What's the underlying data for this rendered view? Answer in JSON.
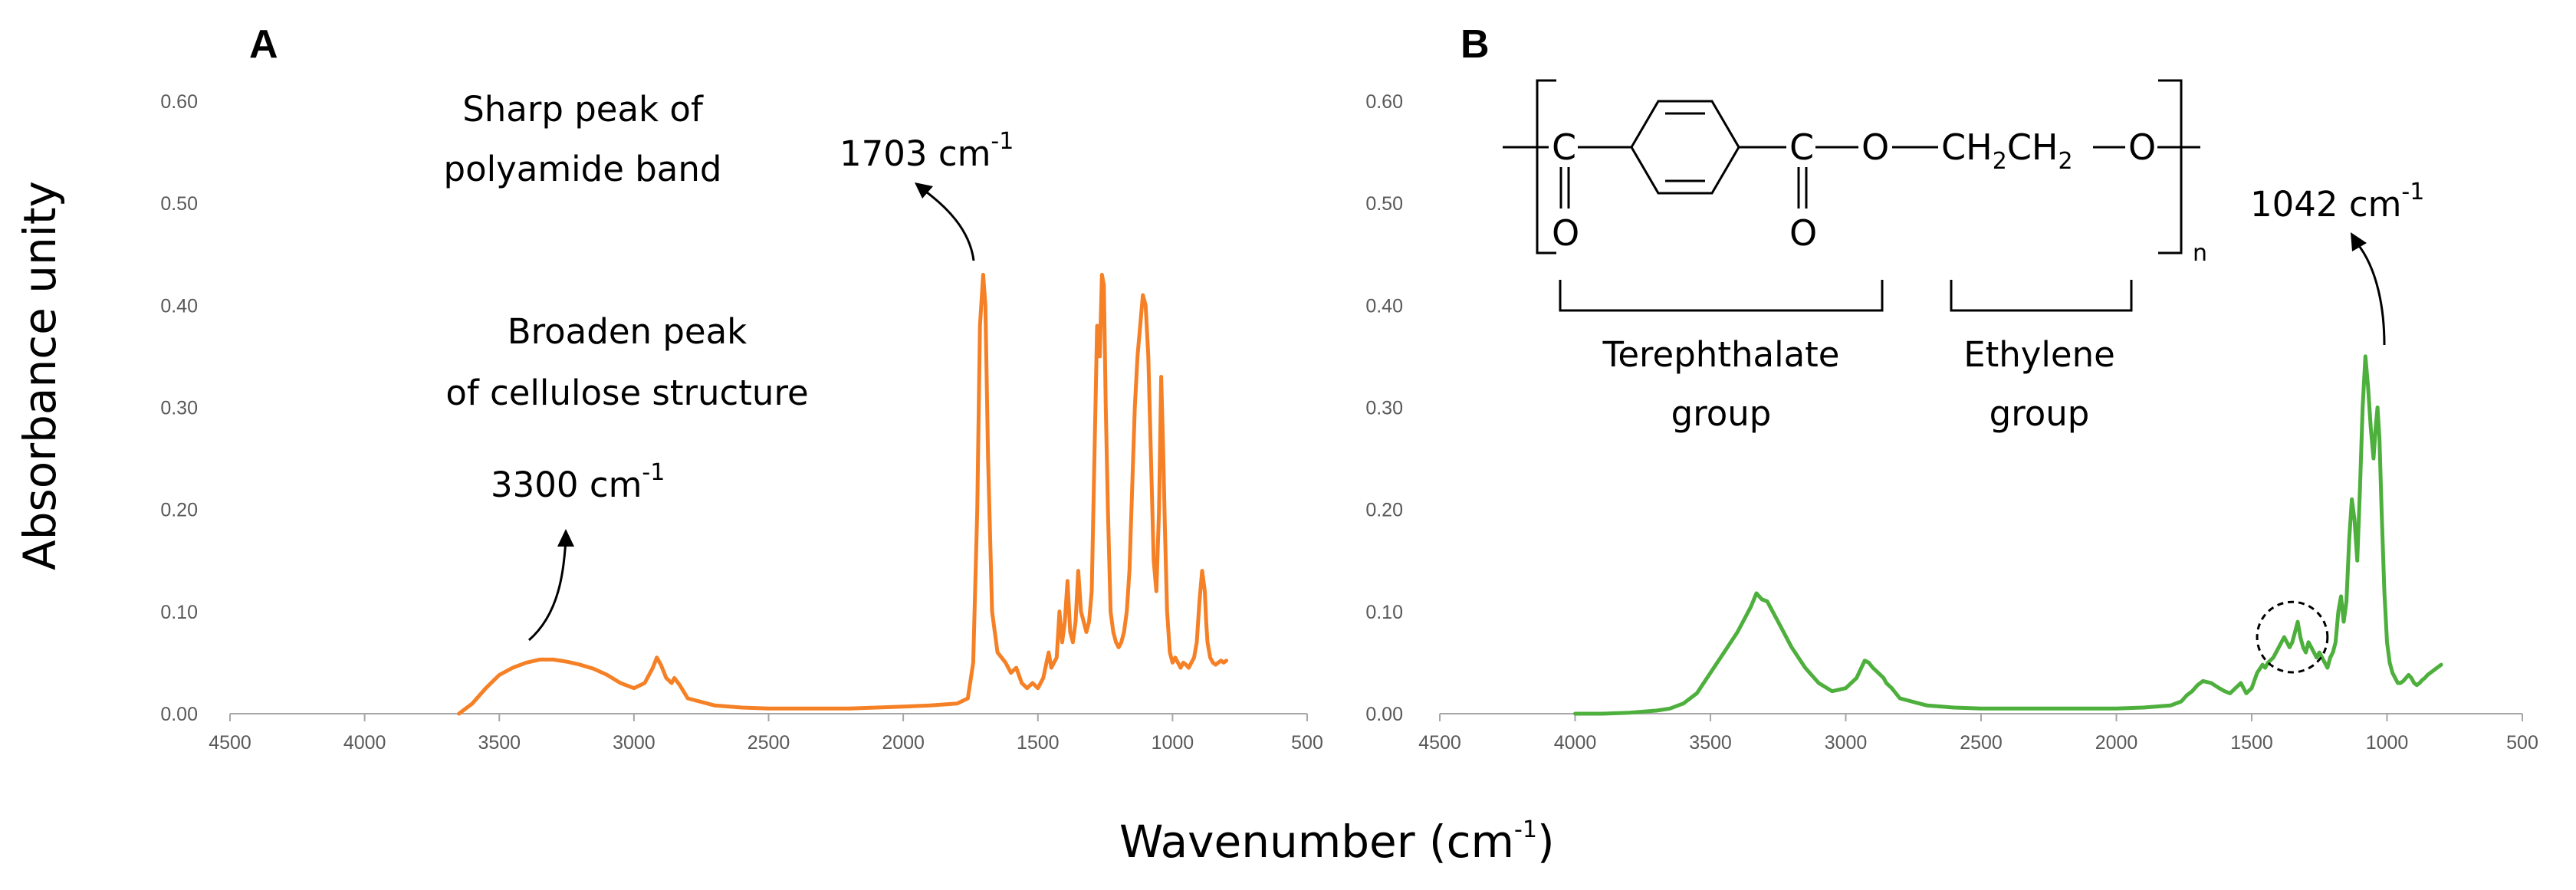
{
  "figure": {
    "ylabel": "Absorbance unity",
    "xlabel_main": "Wavenumber (cm",
    "xlabel_sup": "-1",
    "xlabel_end": ")"
  },
  "colors": {
    "panel_a": "#f58025",
    "panel_b": "#4daf3c",
    "axis": "#a6a6a6"
  },
  "chart_data": [
    {
      "type": "line",
      "panel": "A",
      "xlim": [
        4500,
        500
      ],
      "ylim": [
        0,
        0.6
      ],
      "x_ticks": [
        "4500",
        "4000",
        "3500",
        "3000",
        "2500",
        "2000",
        "1500",
        "1000",
        "500"
      ],
      "y_ticks": [
        "0.00",
        "0.10",
        "0.20",
        "0.30",
        "0.40",
        "0.50",
        "0.60"
      ],
      "series": [
        {
          "color": "#f58025",
          "x": [
            3650,
            3600,
            3550,
            3500,
            3450,
            3400,
            3350,
            3300,
            3250,
            3200,
            3150,
            3100,
            3050,
            3000,
            2960,
            2930,
            2915,
            2900,
            2880,
            2860,
            2850,
            2830,
            2800,
            2700,
            2600,
            2500,
            2400,
            2300,
            2200,
            2100,
            2000,
            1900,
            1800,
            1760,
            1740,
            1725,
            1715,
            1703,
            1695,
            1685,
            1670,
            1650,
            1620,
            1600,
            1580,
            1560,
            1540,
            1520,
            1500,
            1480,
            1460,
            1450,
            1440,
            1430,
            1420,
            1410,
            1400,
            1390,
            1380,
            1370,
            1360,
            1350,
            1340,
            1330,
            1320,
            1310,
            1300,
            1290,
            1280,
            1270,
            1262,
            1255,
            1248,
            1240,
            1230,
            1220,
            1210,
            1200,
            1190,
            1180,
            1170,
            1160,
            1150,
            1140,
            1130,
            1120,
            1110,
            1100,
            1090,
            1080,
            1070,
            1060,
            1050,
            1042,
            1035,
            1028,
            1020,
            1010,
            1000,
            990,
            980,
            970,
            960,
            950,
            940,
            930,
            920,
            910,
            900,
            890,
            880,
            875,
            870,
            860,
            850,
            840,
            830,
            820,
            810,
            800
          ],
          "y": [
            0.0,
            0.01,
            0.025,
            0.038,
            0.045,
            0.05,
            0.053,
            0.053,
            0.051,
            0.048,
            0.044,
            0.038,
            0.03,
            0.025,
            0.03,
            0.045,
            0.055,
            0.048,
            0.035,
            0.03,
            0.035,
            0.028,
            0.015,
            0.008,
            0.006,
            0.005,
            0.005,
            0.005,
            0.005,
            0.006,
            0.007,
            0.008,
            0.01,
            0.015,
            0.05,
            0.2,
            0.38,
            0.43,
            0.4,
            0.25,
            0.1,
            0.06,
            0.05,
            0.04,
            0.045,
            0.03,
            0.025,
            0.03,
            0.025,
            0.035,
            0.06,
            0.045,
            0.05,
            0.055,
            0.1,
            0.07,
            0.09,
            0.13,
            0.08,
            0.07,
            0.09,
            0.14,
            0.1,
            0.09,
            0.08,
            0.09,
            0.12,
            0.25,
            0.38,
            0.35,
            0.43,
            0.42,
            0.3,
            0.2,
            0.1,
            0.08,
            0.07,
            0.065,
            0.07,
            0.08,
            0.1,
            0.14,
            0.22,
            0.3,
            0.35,
            0.38,
            0.41,
            0.4,
            0.35,
            0.25,
            0.15,
            0.12,
            0.2,
            0.33,
            0.26,
            0.18,
            0.1,
            0.06,
            0.05,
            0.055,
            0.05,
            0.045,
            0.05,
            0.048,
            0.045,
            0.05,
            0.055,
            0.07,
            0.11,
            0.14,
            0.12,
            0.09,
            0.07,
            0.055,
            0.05,
            0.048,
            0.05,
            0.052,
            0.05,
            0.052
          ]
        }
      ],
      "annotations": {
        "label_3300": "3300 cm",
        "label_3300_sup": "-1",
        "text_cellulose_1": "Broaden peak",
        "text_cellulose_2": "of cellulose structure",
        "text_polyamide_1": "Sharp peak of",
        "text_polyamide_2": "polyamide band",
        "label_1703": "1703 cm",
        "label_1703_sup": "-1"
      }
    },
    {
      "type": "line",
      "panel": "B",
      "xlim": [
        4500,
        500
      ],
      "ylim": [
        0,
        0.6
      ],
      "x_ticks": [
        "4500",
        "4000",
        "3500",
        "3000",
        "2500",
        "2000",
        "1500",
        "1000",
        "500"
      ],
      "y_ticks": [
        "0.00",
        "0.10",
        "0.20",
        "0.30",
        "0.40",
        "0.50",
        "0.60"
      ],
      "series": [
        {
          "color": "#4daf3c",
          "x": [
            4000,
            3900,
            3800,
            3700,
            3650,
            3600,
            3550,
            3500,
            3450,
            3400,
            3370,
            3350,
            3330,
            3310,
            3290,
            3270,
            3250,
            3200,
            3150,
            3100,
            3050,
            3000,
            2960,
            2930,
            2915,
            2900,
            2880,
            2860,
            2850,
            2830,
            2800,
            2700,
            2600,
            2500,
            2400,
            2300,
            2200,
            2100,
            2000,
            1900,
            1800,
            1760,
            1740,
            1720,
            1700,
            1680,
            1650,
            1620,
            1600,
            1580,
            1560,
            1540,
            1520,
            1500,
            1480,
            1460,
            1450,
            1440,
            1420,
            1400,
            1390,
            1380,
            1370,
            1360,
            1350,
            1340,
            1330,
            1320,
            1310,
            1300,
            1290,
            1280,
            1270,
            1260,
            1250,
            1240,
            1230,
            1220,
            1210,
            1200,
            1190,
            1180,
            1170,
            1160,
            1150,
            1140,
            1130,
            1120,
            1110,
            1100,
            1090,
            1080,
            1070,
            1060,
            1050,
            1042,
            1035,
            1028,
            1020,
            1010,
            1000,
            990,
            980,
            970,
            960,
            950,
            940,
            930,
            920,
            910,
            900,
            890,
            880,
            870,
            860,
            850,
            840,
            830,
            820,
            810,
            800
          ],
          "y": [
            0.0,
            0.0,
            0.001,
            0.003,
            0.005,
            0.01,
            0.02,
            0.04,
            0.06,
            0.08,
            0.095,
            0.105,
            0.118,
            0.112,
            0.11,
            0.1,
            0.09,
            0.065,
            0.045,
            0.03,
            0.022,
            0.025,
            0.035,
            0.052,
            0.05,
            0.045,
            0.04,
            0.035,
            0.03,
            0.025,
            0.015,
            0.008,
            0.006,
            0.005,
            0.005,
            0.005,
            0.005,
            0.005,
            0.005,
            0.006,
            0.008,
            0.012,
            0.018,
            0.022,
            0.028,
            0.032,
            0.03,
            0.025,
            0.022,
            0.02,
            0.025,
            0.03,
            0.02,
            0.025,
            0.04,
            0.048,
            0.045,
            0.05,
            0.055,
            0.065,
            0.07,
            0.075,
            0.07,
            0.065,
            0.07,
            0.08,
            0.09,
            0.075,
            0.065,
            0.06,
            0.07,
            0.065,
            0.06,
            0.055,
            0.06,
            0.055,
            0.05,
            0.045,
            0.055,
            0.06,
            0.07,
            0.1,
            0.115,
            0.09,
            0.11,
            0.17,
            0.21,
            0.19,
            0.15,
            0.22,
            0.3,
            0.35,
            0.32,
            0.28,
            0.25,
            0.28,
            0.3,
            0.27,
            0.2,
            0.12,
            0.07,
            0.05,
            0.04,
            0.035,
            0.03,
            0.03,
            0.032,
            0.035,
            0.038,
            0.035,
            0.03,
            0.028,
            0.03,
            0.033,
            0.035,
            0.038,
            0.04,
            0.042,
            0.044,
            0.046,
            0.048
          ],
          "marker_circle": {
            "center_x": 1350,
            "center_y": 0.075,
            "radius_x": 130
          }
        }
      ],
      "annotations": {
        "label_1042": "1042 cm",
        "label_1042_sup": "-1",
        "chem_C1": "C",
        "chem_O1": "O",
        "chem_C2": "C",
        "chem_O2": "O",
        "chem_O_link": "O",
        "chem_CH": "CH",
        "chem_2a": "2",
        "chem_2b": "2",
        "chem_O_end": "O",
        "chem_n": "n",
        "group_1_line1": "Terephthalate",
        "group_1_line2": "group",
        "group_2_line1": "Ethylene",
        "group_2_line2": "group"
      }
    }
  ]
}
